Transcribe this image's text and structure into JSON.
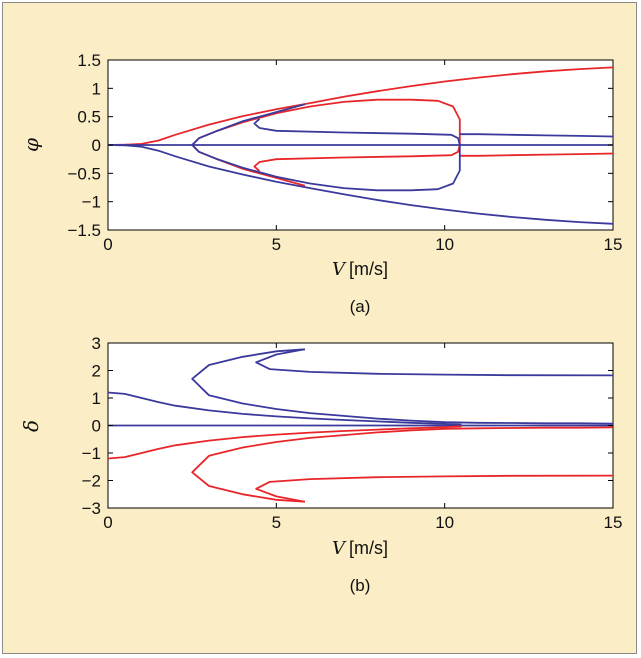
{
  "colors": {
    "background": "#fbeec6",
    "red": "#e8262a",
    "blue": "#3a3a9c",
    "plot_bg": "#ffffff"
  },
  "chart_data": [
    {
      "type": "line",
      "caption": "(a)",
      "xlabel_var": "V",
      "xlabel_unit": "[m/s]",
      "ylabel": "φ",
      "xlim": [
        0,
        15
      ],
      "ylim": [
        -1.5,
        1.5
      ],
      "xticks": [
        "0",
        "5",
        "10",
        "15"
      ],
      "xtick_values": [
        0,
        5,
        10,
        15
      ],
      "yticks": [
        "1.5",
        "1",
        "0.5",
        "0",
        "−0.5",
        "−1",
        "−1.5"
      ],
      "ytick_values": [
        1.5,
        1,
        0.5,
        0,
        -0.5,
        -1,
        -1.5
      ],
      "grid": false,
      "series": [
        {
          "color": "red",
          "points": [
            [
              0,
              0
            ],
            [
              0.5,
              0.005
            ],
            [
              1,
              0.02
            ],
            [
              1.5,
              0.08
            ],
            [
              2,
              0.18
            ],
            [
              3,
              0.36
            ],
            [
              4,
              0.51
            ],
            [
              5,
              0.63
            ],
            [
              6,
              0.74
            ],
            [
              7,
              0.85
            ],
            [
              8,
              0.95
            ],
            [
              9,
              1.04
            ],
            [
              10,
              1.12
            ],
            [
              11,
              1.19
            ],
            [
              12,
              1.25
            ],
            [
              13,
              1.3
            ],
            [
              14,
              1.34
            ],
            [
              15,
              1.37
            ]
          ]
        },
        {
          "color": "red",
          "points": [
            [
              5.85,
              -0.72
            ],
            [
              5,
              -0.58
            ],
            [
              4,
              -0.42
            ],
            [
              3.2,
              -0.24
            ],
            [
              2.7,
              -0.12
            ],
            [
              2.5,
              0
            ],
            [
              2.7,
              0.12
            ],
            [
              3.2,
              0.24
            ],
            [
              4,
              0.4
            ],
            [
              5,
              0.56
            ],
            [
              6,
              0.68
            ],
            [
              7,
              0.76
            ],
            [
              8,
              0.8
            ],
            [
              9,
              0.8
            ],
            [
              9.8,
              0.78
            ],
            [
              10.25,
              0.68
            ],
            [
              10.45,
              0.45
            ],
            [
              10.45,
              0
            ],
            [
              10.4,
              -0.12
            ],
            [
              10.2,
              -0.18
            ],
            [
              9,
              -0.2
            ],
            [
              7,
              -0.22
            ],
            [
              5,
              -0.25
            ],
            [
              4.5,
              -0.3
            ],
            [
              4.35,
              -0.38
            ],
            [
              4.5,
              -0.46
            ]
          ]
        },
        {
          "color": "red",
          "points": [
            [
              10.45,
              -0.19
            ],
            [
              11,
              -0.19
            ],
            [
              12,
              -0.18
            ],
            [
              13,
              -0.17
            ],
            [
              14,
              -0.16
            ],
            [
              15,
              -0.15
            ]
          ]
        },
        {
          "color": "blue",
          "points": [
            [
              0,
              0
            ],
            [
              15,
              0
            ]
          ]
        },
        {
          "color": "blue",
          "points": [
            [
              0,
              0
            ],
            [
              0.5,
              -0.005
            ],
            [
              1,
              -0.03
            ],
            [
              1.5,
              -0.1
            ],
            [
              2,
              -0.2
            ],
            [
              3,
              -0.38
            ],
            [
              4,
              -0.52
            ],
            [
              5,
              -0.65
            ],
            [
              6,
              -0.76
            ],
            [
              7,
              -0.87
            ],
            [
              8,
              -0.97
            ],
            [
              9,
              -1.06
            ],
            [
              10,
              -1.14
            ],
            [
              11,
              -1.21
            ],
            [
              12,
              -1.27
            ],
            [
              13,
              -1.32
            ],
            [
              14,
              -1.36
            ],
            [
              15,
              -1.39
            ]
          ]
        },
        {
          "color": "blue",
          "points": [
            [
              5.85,
              0.72
            ],
            [
              5,
              0.58
            ],
            [
              4,
              0.42
            ],
            [
              3.2,
              0.24
            ],
            [
              2.7,
              0.12
            ],
            [
              2.5,
              0
            ],
            [
              2.7,
              -0.12
            ],
            [
              3.2,
              -0.24
            ],
            [
              4,
              -0.4
            ],
            [
              5,
              -0.56
            ],
            [
              6,
              -0.68
            ],
            [
              7,
              -0.76
            ],
            [
              8,
              -0.8
            ],
            [
              9,
              -0.8
            ],
            [
              9.8,
              -0.78
            ],
            [
              10.25,
              -0.68
            ],
            [
              10.45,
              -0.45
            ],
            [
              10.45,
              0
            ],
            [
              10.4,
              0.12
            ],
            [
              10.2,
              0.18
            ],
            [
              9,
              0.2
            ],
            [
              7,
              0.22
            ],
            [
              5,
              0.25
            ],
            [
              4.5,
              0.3
            ],
            [
              4.35,
              0.38
            ],
            [
              4.5,
              0.46
            ]
          ]
        },
        {
          "color": "blue",
          "points": [
            [
              10.45,
              0.19
            ],
            [
              11,
              0.19
            ],
            [
              12,
              0.18
            ],
            [
              13,
              0.17
            ],
            [
              14,
              0.16
            ],
            [
              15,
              0.15
            ]
          ]
        }
      ]
    },
    {
      "type": "line",
      "caption": "(b)",
      "xlabel_var": "V",
      "xlabel_unit": "[m/s]",
      "ylabel": "δ",
      "xlim": [
        0,
        15
      ],
      "ylim": [
        -3,
        3
      ],
      "xticks": [
        "0",
        "5",
        "10",
        "15"
      ],
      "xtick_values": [
        0,
        5,
        10,
        15
      ],
      "yticks": [
        "3",
        "2",
        "1",
        "0",
        "−1",
        "−2",
        "−3"
      ],
      "ytick_values": [
        3,
        2,
        1,
        0,
        -1,
        -2,
        -3
      ],
      "grid": false,
      "series": [
        {
          "color": "blue",
          "points": [
            [
              0,
              0
            ],
            [
              15,
              0
            ]
          ]
        },
        {
          "color": "blue",
          "points": [
            [
              0,
              1.2
            ],
            [
              0.5,
              1.15
            ],
            [
              1,
              1.0
            ],
            [
              1.5,
              0.85
            ],
            [
              2,
              0.72
            ],
            [
              3,
              0.55
            ],
            [
              4,
              0.42
            ],
            [
              5,
              0.33
            ],
            [
              6,
              0.26
            ],
            [
              7,
              0.2
            ],
            [
              8,
              0.15
            ],
            [
              9,
              0.1
            ],
            [
              10,
              0.06
            ],
            [
              10.5,
              0.03
            ]
          ]
        },
        {
          "color": "blue",
          "points": [
            [
              5.85,
              2.77
            ],
            [
              5,
              2.7
            ],
            [
              4,
              2.5
            ],
            [
              3,
              2.2
            ],
            [
              2.5,
              1.7
            ],
            [
              3,
              1.1
            ],
            [
              4,
              0.8
            ],
            [
              5,
              0.6
            ],
            [
              6,
              0.45
            ],
            [
              7,
              0.35
            ],
            [
              8,
              0.25
            ],
            [
              9,
              0.18
            ],
            [
              10,
              0.12
            ],
            [
              11,
              0.1
            ],
            [
              12,
              0.09
            ],
            [
              13,
              0.08
            ],
            [
              14,
              0.08
            ],
            [
              15,
              0.07
            ]
          ]
        },
        {
          "color": "blue",
          "points": [
            [
              5.85,
              2.77
            ],
            [
              5,
              2.58
            ],
            [
              4.4,
              2.3
            ],
            [
              4.8,
              2.05
            ],
            [
              6,
              1.95
            ],
            [
              8,
              1.88
            ],
            [
              10,
              1.85
            ],
            [
              12,
              1.83
            ],
            [
              15,
              1.82
            ]
          ]
        },
        {
          "color": "red",
          "points": [
            [
              0,
              -1.2
            ],
            [
              0.5,
              -1.15
            ],
            [
              1,
              -1.0
            ],
            [
              1.5,
              -0.85
            ],
            [
              2,
              -0.72
            ],
            [
              3,
              -0.55
            ],
            [
              4,
              -0.42
            ],
            [
              5,
              -0.33
            ],
            [
              6,
              -0.26
            ],
            [
              7,
              -0.2
            ],
            [
              8,
              -0.15
            ],
            [
              9,
              -0.1
            ],
            [
              10,
              -0.06
            ],
            [
              10.5,
              -0.03
            ]
          ]
        },
        {
          "color": "red",
          "points": [
            [
              5.85,
              -2.77
            ],
            [
              5,
              -2.7
            ],
            [
              4,
              -2.5
            ],
            [
              3,
              -2.2
            ],
            [
              2.5,
              -1.7
            ],
            [
              3,
              -1.1
            ],
            [
              4,
              -0.8
            ],
            [
              5,
              -0.6
            ],
            [
              6,
              -0.45
            ],
            [
              7,
              -0.35
            ],
            [
              8,
              -0.25
            ],
            [
              9,
              -0.18
            ],
            [
              10,
              -0.12
            ],
            [
              11,
              -0.1
            ],
            [
              12,
              -0.09
            ],
            [
              13,
              -0.08
            ],
            [
              14,
              -0.08
            ],
            [
              15,
              -0.07
            ]
          ]
        },
        {
          "color": "red",
          "points": [
            [
              5.85,
              -2.77
            ],
            [
              5,
              -2.58
            ],
            [
              4.4,
              -2.3
            ],
            [
              4.8,
              -2.05
            ],
            [
              6,
              -1.95
            ],
            [
              8,
              -1.88
            ],
            [
              10,
              -1.85
            ],
            [
              12,
              -1.83
            ],
            [
              15,
              -1.82
            ]
          ]
        }
      ]
    }
  ]
}
